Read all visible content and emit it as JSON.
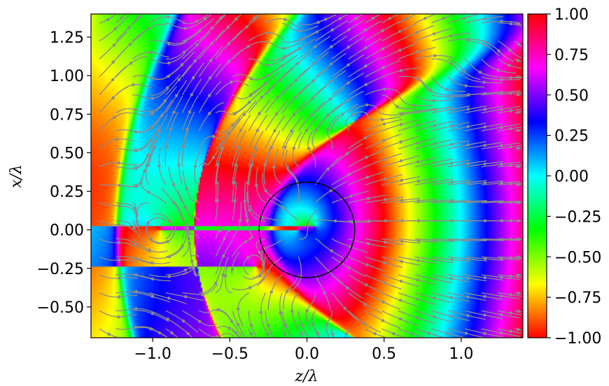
{
  "chart_data": {
    "type": "heatmap",
    "xlabel": "z/λ",
    "ylabel": "x/λ",
    "xlim": [
      -1.4,
      1.4
    ],
    "ylim": [
      -0.7,
      1.4
    ],
    "x_ticks": [
      {
        "value": -1.0,
        "label": "−1.0"
      },
      {
        "value": -0.5,
        "label": "−0.5"
      },
      {
        "value": 0.0,
        "label": "0.0"
      },
      {
        "value": 0.5,
        "label": "0.5"
      },
      {
        "value": 1.0,
        "label": "1.0"
      }
    ],
    "y_ticks": [
      {
        "value": -0.5,
        "label": "−0.50"
      },
      {
        "value": -0.25,
        "label": "−0.25"
      },
      {
        "value": 0.0,
        "label": "0.00"
      },
      {
        "value": 0.25,
        "label": "0.25"
      },
      {
        "value": 0.5,
        "label": "0.50"
      },
      {
        "value": 0.75,
        "label": "0.75"
      },
      {
        "value": 1.0,
        "label": "1.00"
      },
      {
        "value": 1.25,
        "label": "1.25"
      }
    ],
    "colorbar": {
      "range": [
        -1.0,
        1.0
      ],
      "colormap": "hsv",
      "ticks": [
        {
          "value": 1.0,
          "label": "1.00"
        },
        {
          "value": 0.75,
          "label": "0.75"
        },
        {
          "value": 0.5,
          "label": "0.50"
        },
        {
          "value": 0.25,
          "label": "0.25"
        },
        {
          "value": 0.0,
          "label": "0.00"
        },
        {
          "value": -0.25,
          "label": "−0.25"
        },
        {
          "value": -0.5,
          "label": "−0.50"
        },
        {
          "value": -0.75,
          "label": "−0.75"
        },
        {
          "value": -1.0,
          "label": "−1.00"
        }
      ]
    },
    "circle": {
      "center_z": 0.0,
      "center_x": 0.0,
      "radius": 0.31,
      "color": "#000000"
    },
    "streamline_color": "#8c8c8c",
    "phase_singularities": [
      {
        "z": -0.95,
        "x": 0.0
      },
      {
        "z": -0.33,
        "x": -0.24
      },
      {
        "z": -0.05,
        "x": 0.0
      },
      {
        "z": 0.05,
        "x": 0.02
      }
    ],
    "grid": false
  }
}
